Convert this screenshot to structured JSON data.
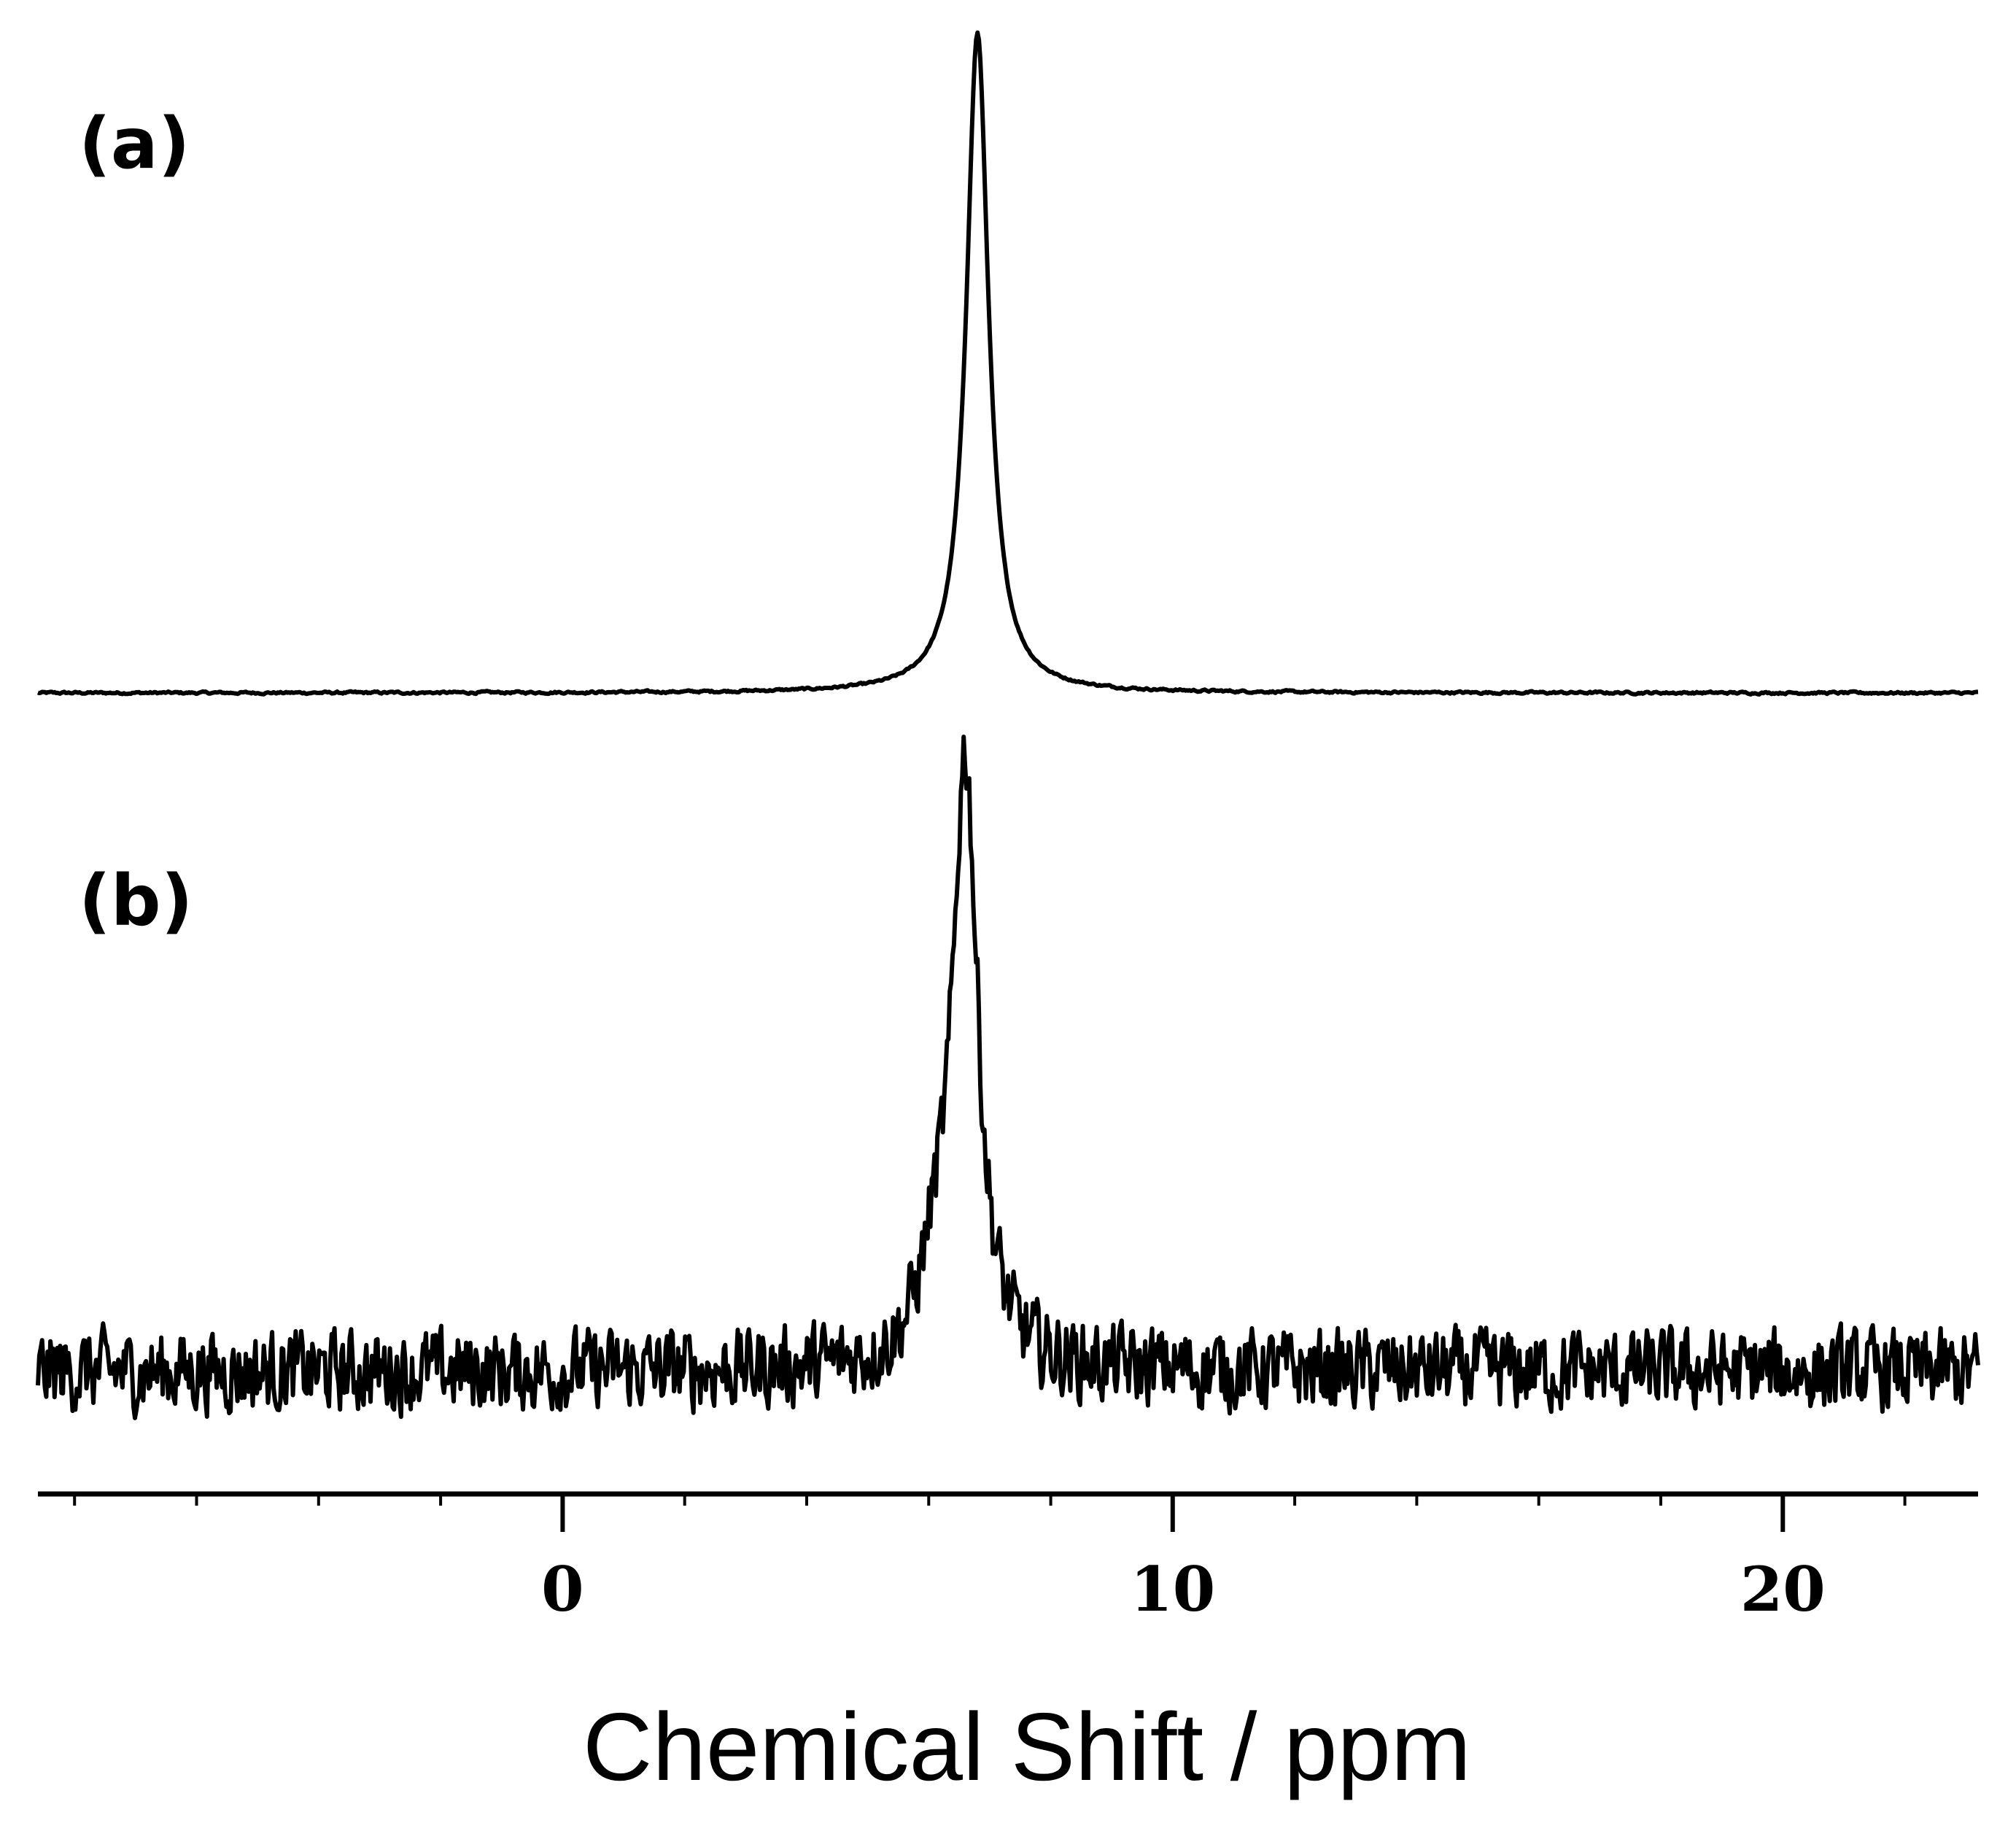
{
  "chart_data": {
    "type": "line",
    "title": "",
    "xlabel": "Chemical Shift / ppm",
    "ylabel": "",
    "xlim": [
      -8.6,
      23.2
    ],
    "x_ticks": [
      0,
      10,
      20
    ],
    "x_tick_labels": [
      "0",
      "10",
      "20"
    ],
    "grid": false,
    "legend": "none",
    "line_color": "#000000",
    "panels": [
      {
        "label": "(a)",
        "peak_x": 6.8,
        "peak_relative_intensity": 1.0,
        "noise_level": "low"
      },
      {
        "label": "(b)",
        "peak_x": 6.6,
        "shoulder_x": 6.1,
        "peak_relative_intensity": 1.0,
        "noise_level": "high"
      }
    ]
  }
}
